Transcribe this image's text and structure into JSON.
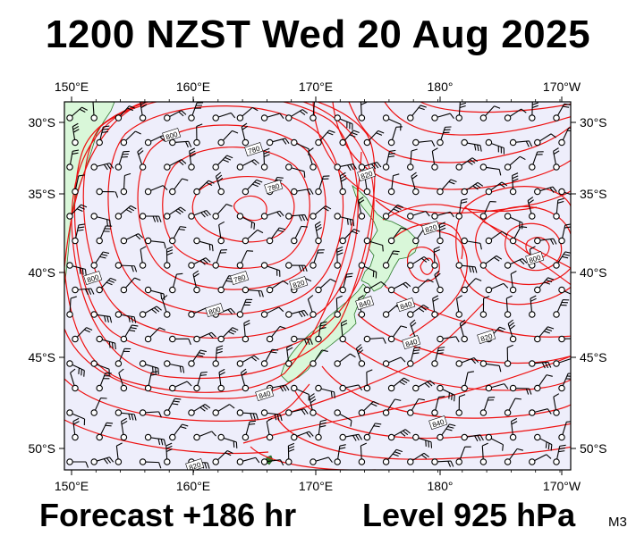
{
  "header": {
    "title": "1200 NZST Wed 20 Aug 2025"
  },
  "footer": {
    "forecast": "Forecast +186 hr",
    "level": "Level 925 hPa",
    "model_code": "M3"
  },
  "map": {
    "projection": "mercator",
    "lon_range": [
      149.8,
      190.2
    ],
    "lat_range": [
      -51.5,
      -27.4
    ],
    "x_ticks": [
      "150°E",
      "160°E",
      "170°E",
      "180°",
      "170°W"
    ],
    "y_ticks": [
      "30°S",
      "35°S",
      "40°S",
      "45°S",
      "50°S"
    ],
    "contour_labels": [
      "800",
      "780",
      "780",
      "780",
      "800",
      "800",
      "820",
      "820",
      "820",
      "840",
      "840",
      "840",
      "840",
      "820",
      "840",
      "800",
      "820"
    ],
    "colors": {
      "ocean": "#eeeefb",
      "land": "#d9f7d9",
      "contour": "#ee1111",
      "land_outline": "#2a7a2a",
      "barb": "#000000"
    }
  }
}
